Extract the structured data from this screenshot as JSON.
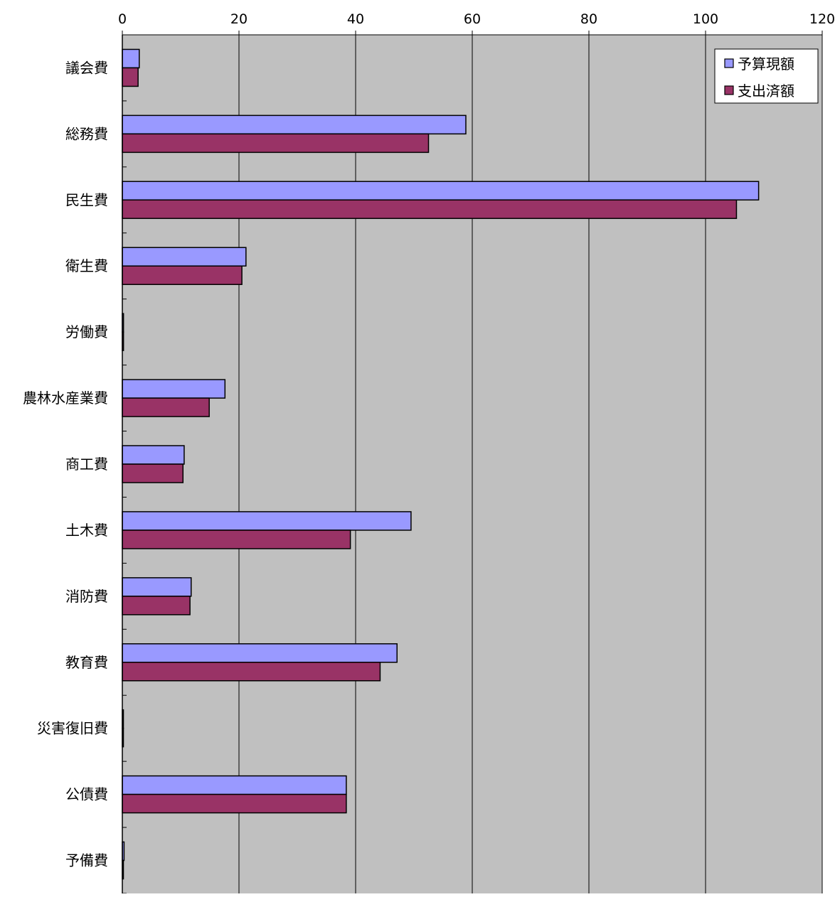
{
  "chart_data": {
    "type": "bar",
    "orientation": "horizontal",
    "categories": [
      "議会費",
      "総務費",
      "民生費",
      "衛生費",
      "労働費",
      "農林水産業費",
      "商工費",
      "土木費",
      "消防費",
      "教育費",
      "災害復旧費",
      "公債費",
      "予備費"
    ],
    "series": [
      {
        "name": "予算現額",
        "color": "#9999ff",
        "values": [
          2.9,
          58.9,
          109.1,
          21.2,
          0.2,
          17.6,
          10.6,
          49.5,
          11.8,
          47.1,
          0.1,
          38.4,
          0.3
        ]
      },
      {
        "name": "支出済額",
        "color": "#993366",
        "values": [
          2.7,
          52.5,
          105.3,
          20.5,
          0.2,
          14.9,
          10.4,
          39.1,
          11.6,
          44.2,
          0.1,
          38.4,
          0.0
        ]
      }
    ],
    "xlim": [
      0,
      120
    ],
    "x_ticks": [
      "0",
      "20",
      "40",
      "60",
      "80",
      "100",
      "120"
    ],
    "x_axis_position": "top",
    "grid": true,
    "plot_background": "#c0c0c0",
    "legend_position": "top-right"
  }
}
